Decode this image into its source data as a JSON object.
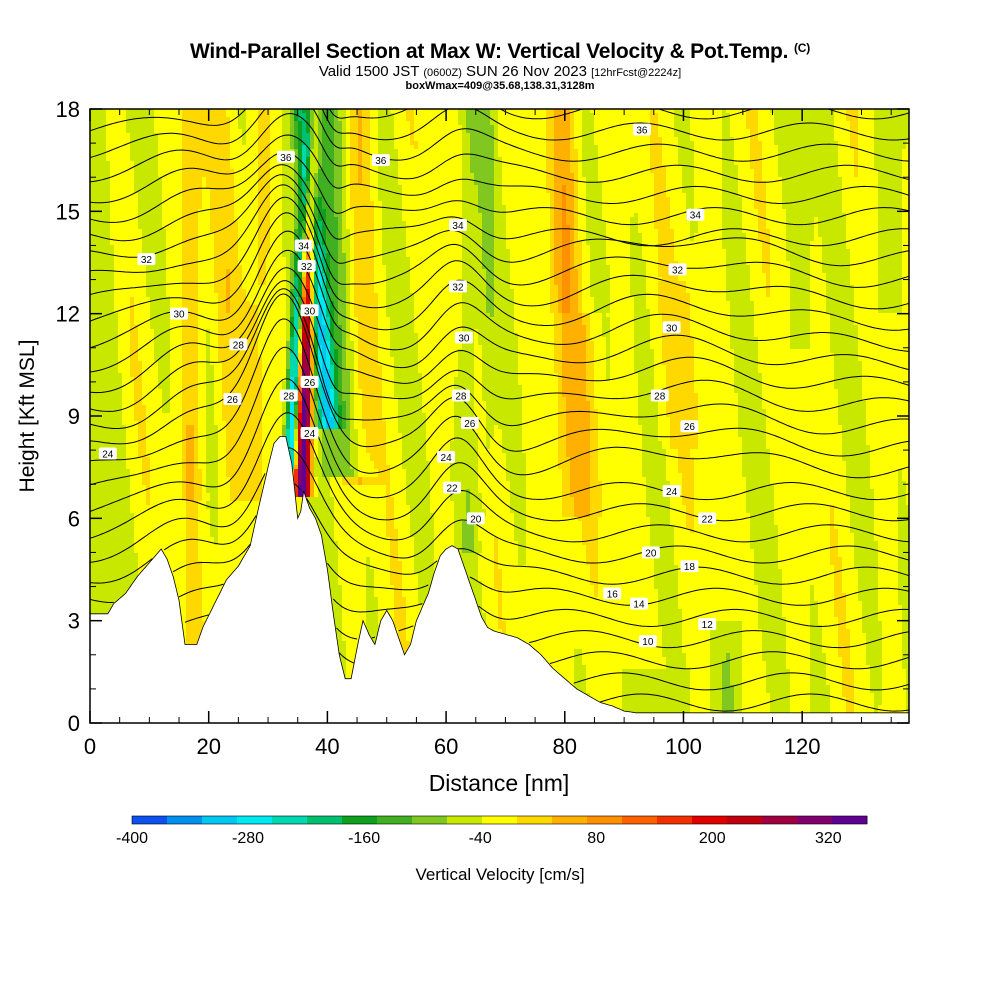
{
  "title": {
    "main": "Wind-Parallel Section at Max W: Vertical Velocity & Pot.Temp.",
    "main_suffix": "(C)",
    "valid_a": "Valid 1500 JST",
    "valid_b": "(0600Z)",
    "valid_c": "SUN 26 Nov 2023",
    "valid_d": "[12hrFcst@2224z]",
    "box": "boxWmax=409@35.68,138.31,3128m"
  },
  "chart_data": {
    "type": "contour-filled cross-section",
    "xlabel": "Distance [nm]",
    "ylabel": "Height [Kft MSL]",
    "xlim": [
      0,
      138
    ],
    "ylim": [
      0,
      18
    ],
    "x_ticks": [
      "0",
      "20",
      "40",
      "60",
      "80",
      "100",
      "120"
    ],
    "y_ticks": [
      "0",
      "3",
      "6",
      "9",
      "12",
      "15",
      "18"
    ],
    "colorbar": {
      "label": "Vertical Velocity [cm/s]",
      "tick_labels": [
        "-400",
        "-280",
        "-160",
        "-40",
        "80",
        "200",
        "320"
      ],
      "colors": [
        "#0000f0",
        "#0c50f0",
        "#0090f0",
        "#00c8f0",
        "#00e8f0",
        "#00d8b0",
        "#00c070",
        "#10a020",
        "#40b020",
        "#80c820",
        "#c8e800",
        "#ffff00",
        "#ffd800",
        "#ffb000",
        "#ff9000",
        "#ff6000",
        "#f03000",
        "#e00000",
        "#c00010",
        "#a00040",
        "#800070",
        "#600090"
      ]
    },
    "theta_labels": [
      {
        "text": "36",
        "x": 33,
        "y": 16.6
      },
      {
        "text": "36",
        "x": 49,
        "y": 16.5
      },
      {
        "text": "36",
        "x": 93,
        "y": 17.4
      },
      {
        "text": "34",
        "x": 36,
        "y": 14.0
      },
      {
        "text": "34",
        "x": 62,
        "y": 14.6
      },
      {
        "text": "34",
        "x": 102,
        "y": 14.9
      },
      {
        "text": "32",
        "x": 36.5,
        "y": 13.4
      },
      {
        "text": "32",
        "x": 62,
        "y": 12.8
      },
      {
        "text": "32",
        "x": 9.5,
        "y": 13.6
      },
      {
        "text": "32",
        "x": 99,
        "y": 13.3
      },
      {
        "text": "30",
        "x": 37,
        "y": 12.1
      },
      {
        "text": "30",
        "x": 15,
        "y": 12.0
      },
      {
        "text": "30",
        "x": 63,
        "y": 11.3
      },
      {
        "text": "30",
        "x": 98,
        "y": 11.6
      },
      {
        "text": "28",
        "x": 25,
        "y": 11.1
      },
      {
        "text": "28",
        "x": 33.5,
        "y": 9.6
      },
      {
        "text": "28",
        "x": 62.5,
        "y": 9.6
      },
      {
        "text": "28",
        "x": 96,
        "y": 9.6
      },
      {
        "text": "26",
        "x": 24,
        "y": 9.5
      },
      {
        "text": "26",
        "x": 37,
        "y": 10.0
      },
      {
        "text": "26",
        "x": 64,
        "y": 8.8
      },
      {
        "text": "26",
        "x": 101,
        "y": 8.7
      },
      {
        "text": "24",
        "x": 3,
        "y": 7.9
      },
      {
        "text": "24",
        "x": 37,
        "y": 8.5
      },
      {
        "text": "24",
        "x": 60,
        "y": 7.8
      },
      {
        "text": "24",
        "x": 98,
        "y": 6.8
      },
      {
        "text": "22",
        "x": 61,
        "y": 6.9
      },
      {
        "text": "22",
        "x": 104,
        "y": 6.0
      },
      {
        "text": "20",
        "x": 65,
        "y": 6.0
      },
      {
        "text": "20",
        "x": 94.5,
        "y": 5.0
      },
      {
        "text": "18",
        "x": 101,
        "y": 4.6
      },
      {
        "text": "16",
        "x": 88,
        "y": 3.8
      },
      {
        "text": "14",
        "x": 92.5,
        "y": 3.5
      },
      {
        "text": "12",
        "x": 104,
        "y": 2.9
      },
      {
        "text": "10",
        "x": 94,
        "y": 2.4
      }
    ]
  }
}
